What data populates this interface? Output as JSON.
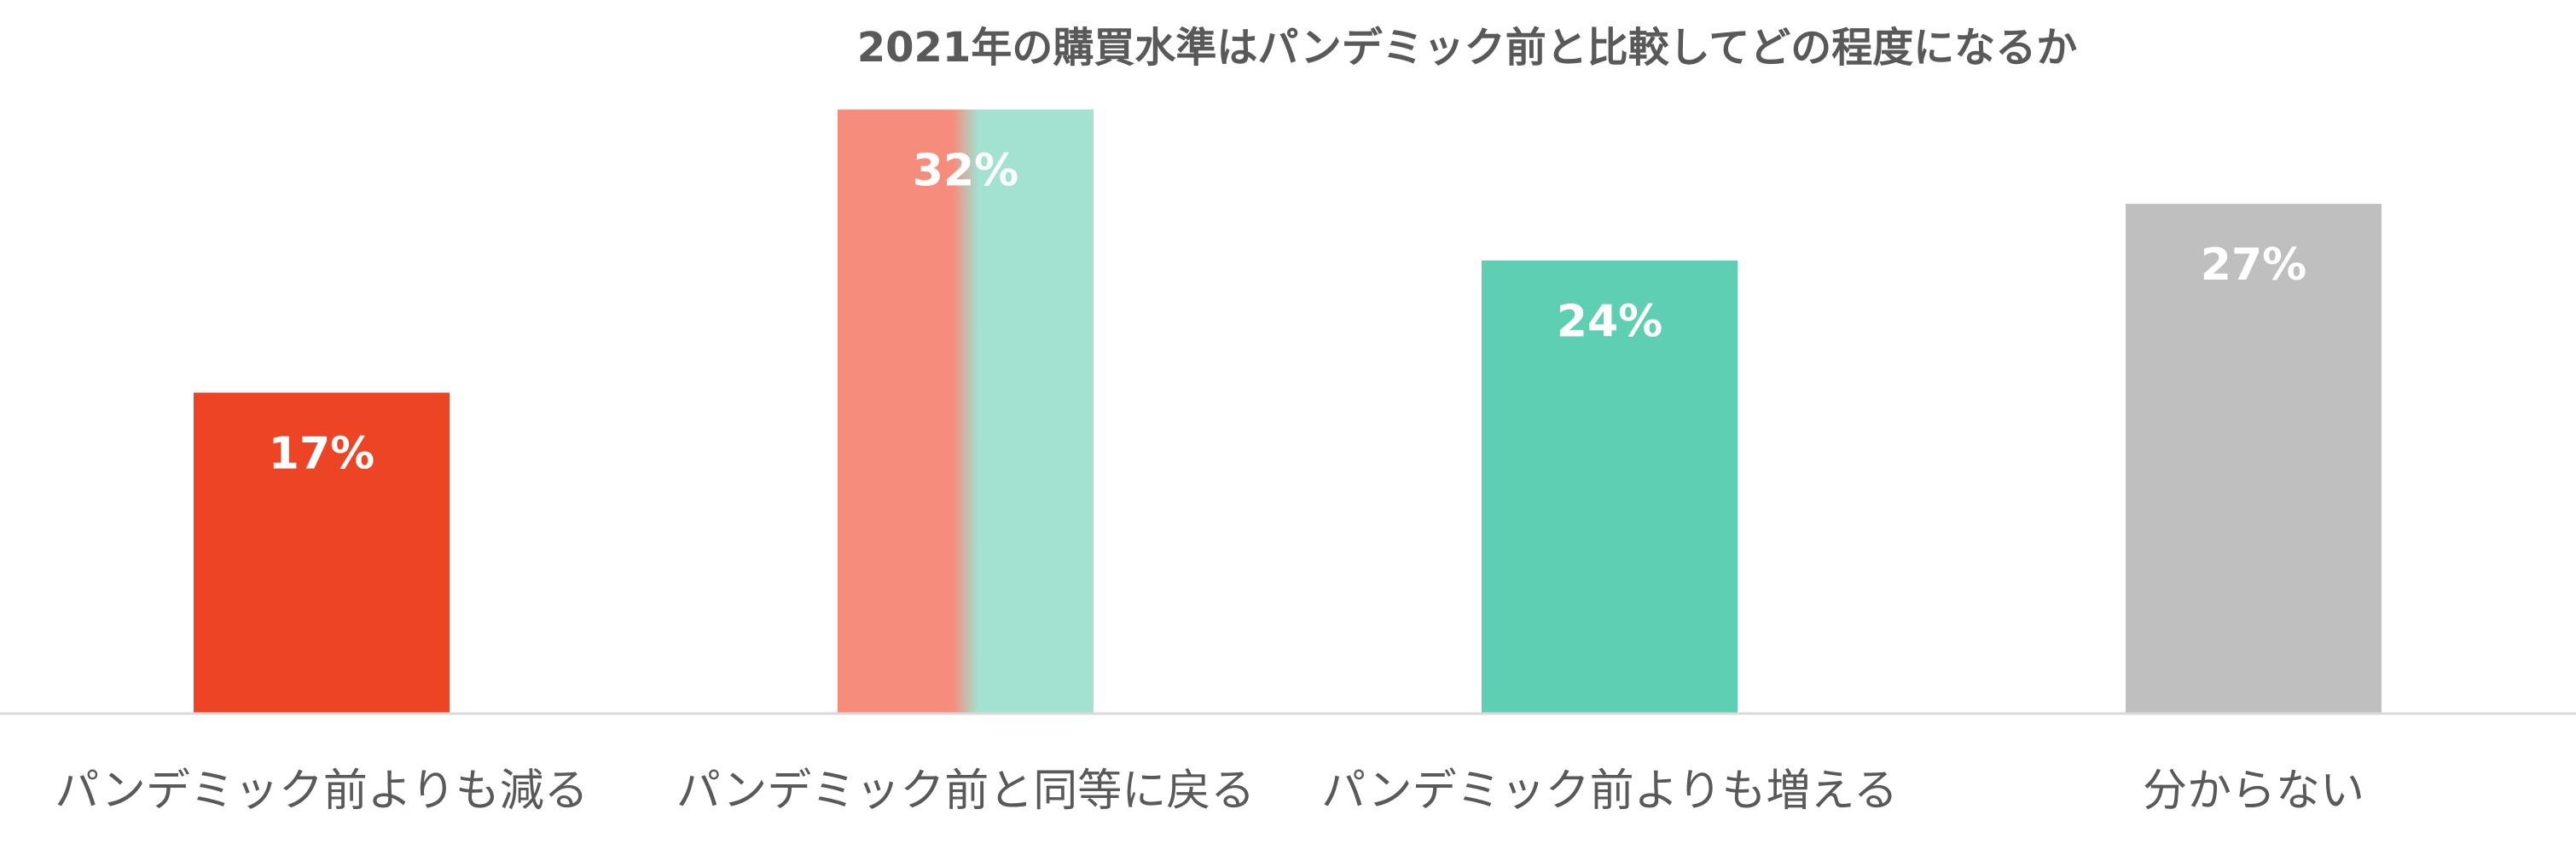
{
  "chart_data": {
    "type": "bar",
    "title": "2021年の購買水準はパンデミック前と比較してどの程度になるか",
    "xlabel": "",
    "ylabel": "",
    "categories": [
      "パンデミック前よりも減る",
      "パンデミック前と同等に戻る",
      "パンデミック前よりも増える",
      "分からない"
    ],
    "values": [
      17,
      32,
      24,
      27
    ],
    "value_labels": [
      "17%",
      "32%",
      "24%",
      "27%"
    ],
    "unit": "%",
    "ylim": [
      0,
      35
    ],
    "grid": false,
    "legend": "none",
    "colors": [
      "#ee4426",
      [
        "#f58c7c",
        "#a3e2d1"
      ],
      "#5ecfb3",
      "#bfbfbf"
    ],
    "axis_color": "#d9d9d9"
  }
}
